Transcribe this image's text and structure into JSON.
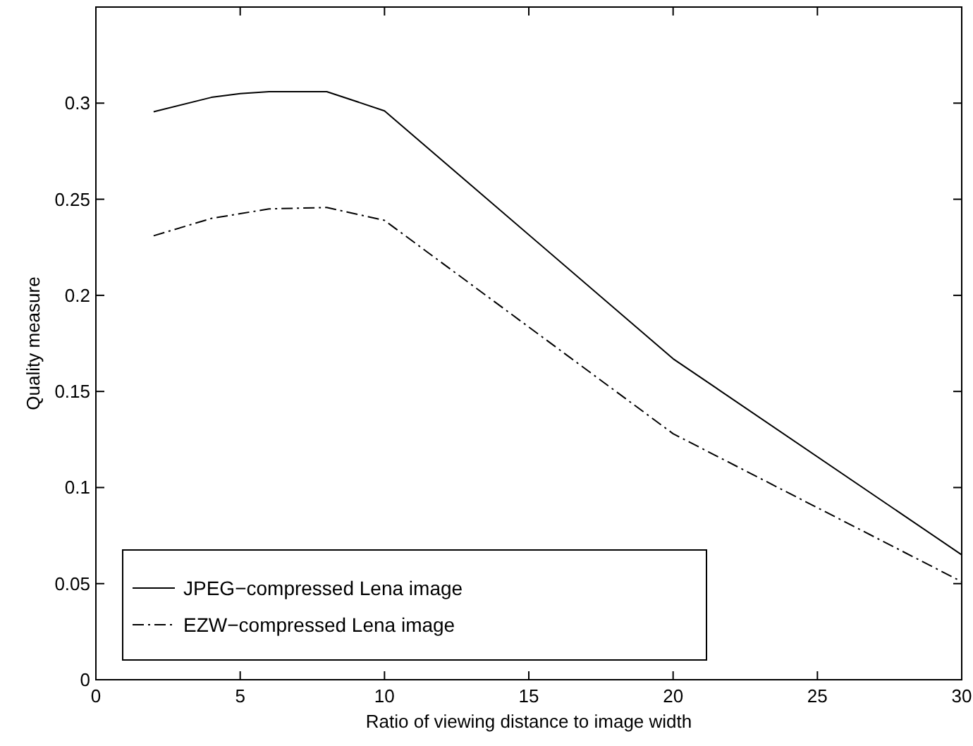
{
  "chart_data": {
    "type": "line",
    "xlabel": "Ratio of viewing distance to image width",
    "ylabel": "Quality measure",
    "x": [
      2,
      4,
      5,
      6,
      8,
      10,
      20,
      30
    ],
    "series": [
      {
        "name": "JPEG−compressed Lena image",
        "color": "#000000",
        "line_style": "solid",
        "values": [
          0.2955,
          0.303,
          0.305,
          0.306,
          0.306,
          0.296,
          0.167,
          0.065
        ]
      },
      {
        "name": "EZW−compressed Lena image",
        "color": "#000000",
        "line_style": "dashdot",
        "values": [
          0.231,
          0.24,
          0.2425,
          0.245,
          0.2457,
          0.239,
          0.128,
          0.051
        ]
      }
    ],
    "xlim": [
      0,
      30
    ],
    "xticks": [
      0,
      5,
      10,
      15,
      20,
      25,
      30
    ],
    "ylim": [
      0,
      0.35
    ],
    "yticks": [
      0,
      0.05,
      0.1,
      0.15,
      0.2,
      0.25,
      0.3
    ],
    "grid": false,
    "legend": "bottom left",
    "marker": "none"
  }
}
